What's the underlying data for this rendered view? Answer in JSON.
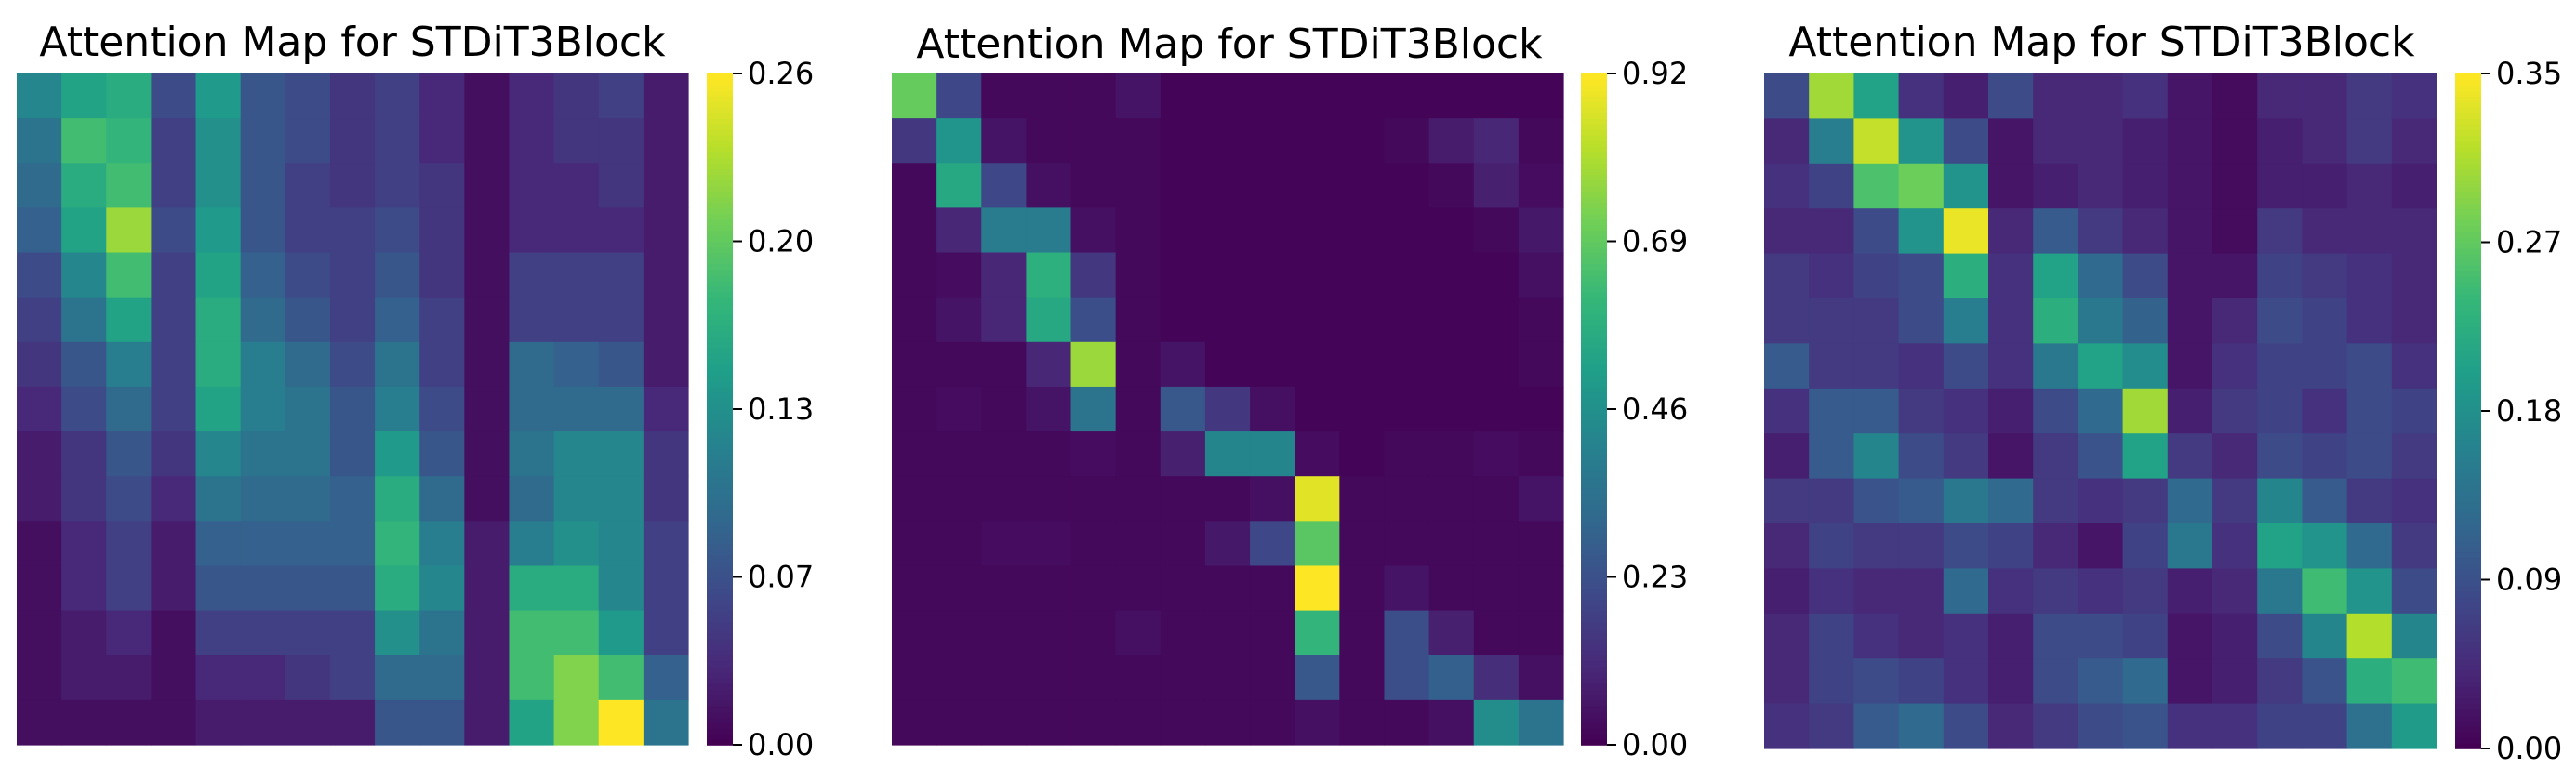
{
  "colormap": "viridis",
  "chart_data": [
    {
      "type": "heatmap",
      "title": "Attention Map for STDiT3Block",
      "colorbar": {
        "vmin": 0,
        "vmax": 0.26,
        "ticks": [
          "0.00",
          "0.07",
          "0.13",
          "0.20",
          "0.26"
        ]
      },
      "values": [
        [
          0.12,
          0.15,
          0.16,
          0.06,
          0.14,
          0.07,
          0.06,
          0.04,
          0.05,
          0.03,
          0.01,
          0.03,
          0.04,
          0.05,
          0.02
        ],
        [
          0.1,
          0.18,
          0.17,
          0.05,
          0.13,
          0.07,
          0.06,
          0.04,
          0.05,
          0.03,
          0.01,
          0.03,
          0.04,
          0.04,
          0.02
        ],
        [
          0.09,
          0.16,
          0.18,
          0.05,
          0.13,
          0.07,
          0.05,
          0.04,
          0.05,
          0.04,
          0.01,
          0.03,
          0.03,
          0.04,
          0.02
        ],
        [
          0.08,
          0.15,
          0.22,
          0.06,
          0.14,
          0.07,
          0.05,
          0.05,
          0.06,
          0.04,
          0.01,
          0.03,
          0.03,
          0.03,
          0.02
        ],
        [
          0.06,
          0.12,
          0.18,
          0.05,
          0.15,
          0.08,
          0.06,
          0.05,
          0.07,
          0.04,
          0.01,
          0.05,
          0.05,
          0.05,
          0.02
        ],
        [
          0.05,
          0.1,
          0.15,
          0.05,
          0.16,
          0.09,
          0.07,
          0.05,
          0.08,
          0.05,
          0.01,
          0.05,
          0.05,
          0.05,
          0.02
        ],
        [
          0.04,
          0.07,
          0.11,
          0.05,
          0.16,
          0.11,
          0.09,
          0.06,
          0.1,
          0.05,
          0.01,
          0.09,
          0.08,
          0.07,
          0.02
        ],
        [
          0.03,
          0.06,
          0.09,
          0.05,
          0.15,
          0.11,
          0.1,
          0.07,
          0.11,
          0.06,
          0.01,
          0.09,
          0.09,
          0.09,
          0.03
        ],
        [
          0.02,
          0.04,
          0.07,
          0.04,
          0.12,
          0.1,
          0.1,
          0.07,
          0.14,
          0.07,
          0.01,
          0.1,
          0.12,
          0.12,
          0.04
        ],
        [
          0.02,
          0.04,
          0.06,
          0.03,
          0.1,
          0.09,
          0.09,
          0.08,
          0.16,
          0.09,
          0.01,
          0.09,
          0.12,
          0.12,
          0.04
        ],
        [
          0.01,
          0.03,
          0.05,
          0.02,
          0.08,
          0.08,
          0.08,
          0.08,
          0.17,
          0.11,
          0.02,
          0.11,
          0.13,
          0.12,
          0.05
        ],
        [
          0.01,
          0.03,
          0.05,
          0.02,
          0.07,
          0.07,
          0.07,
          0.07,
          0.16,
          0.12,
          0.02,
          0.16,
          0.16,
          0.12,
          0.05
        ],
        [
          0.01,
          0.02,
          0.03,
          0.01,
          0.05,
          0.05,
          0.05,
          0.05,
          0.13,
          0.1,
          0.02,
          0.18,
          0.18,
          0.14,
          0.05
        ],
        [
          0.01,
          0.02,
          0.02,
          0.01,
          0.03,
          0.03,
          0.04,
          0.05,
          0.09,
          0.09,
          0.02,
          0.18,
          0.21,
          0.18,
          0.08
        ],
        [
          0.01,
          0.01,
          0.01,
          0.01,
          0.02,
          0.02,
          0.02,
          0.02,
          0.07,
          0.07,
          0.02,
          0.15,
          0.21,
          0.26,
          0.1
        ]
      ]
    },
    {
      "type": "heatmap",
      "title": "Attention Map for STDiT3Block",
      "colorbar": {
        "vmin": 0,
        "vmax": 0.92,
        "ticks": [
          "0.00",
          "0.23",
          "0.46",
          "0.69",
          "0.92"
        ]
      },
      "values": [
        [
          0.7,
          0.2,
          0.02,
          0.02,
          0.02,
          0.05,
          0.01,
          0.01,
          0.01,
          0.01,
          0.01,
          0.01,
          0.01,
          0.01,
          0.01
        ],
        [
          0.15,
          0.48,
          0.05,
          0.02,
          0.02,
          0.02,
          0.01,
          0.01,
          0.01,
          0.01,
          0.01,
          0.02,
          0.07,
          0.1,
          0.02
        ],
        [
          0.02,
          0.55,
          0.2,
          0.04,
          0.02,
          0.02,
          0.01,
          0.01,
          0.01,
          0.01,
          0.01,
          0.01,
          0.02,
          0.08,
          0.03
        ],
        [
          0.02,
          0.1,
          0.38,
          0.38,
          0.04,
          0.02,
          0.01,
          0.01,
          0.01,
          0.01,
          0.01,
          0.01,
          0.01,
          0.02,
          0.06
        ],
        [
          0.02,
          0.03,
          0.1,
          0.58,
          0.15,
          0.02,
          0.01,
          0.01,
          0.01,
          0.01,
          0.01,
          0.01,
          0.01,
          0.01,
          0.04
        ],
        [
          0.02,
          0.05,
          0.1,
          0.55,
          0.22,
          0.02,
          0.01,
          0.01,
          0.01,
          0.01,
          0.01,
          0.01,
          0.01,
          0.01,
          0.02
        ],
        [
          0.02,
          0.02,
          0.02,
          0.1,
          0.78,
          0.02,
          0.05,
          0.01,
          0.01,
          0.01,
          0.01,
          0.01,
          0.01,
          0.01,
          0.02
        ],
        [
          0.02,
          0.03,
          0.02,
          0.05,
          0.35,
          0.02,
          0.25,
          0.15,
          0.04,
          0.01,
          0.01,
          0.01,
          0.01,
          0.01,
          0.01
        ],
        [
          0.02,
          0.02,
          0.02,
          0.02,
          0.03,
          0.02,
          0.08,
          0.42,
          0.42,
          0.03,
          0.01,
          0.02,
          0.02,
          0.03,
          0.02
        ],
        [
          0.02,
          0.02,
          0.02,
          0.02,
          0.02,
          0.02,
          0.02,
          0.02,
          0.04,
          0.88,
          0.02,
          0.02,
          0.02,
          0.02,
          0.05
        ],
        [
          0.02,
          0.02,
          0.03,
          0.03,
          0.02,
          0.02,
          0.02,
          0.06,
          0.2,
          0.68,
          0.02,
          0.02,
          0.02,
          0.02,
          0.02
        ],
        [
          0.02,
          0.02,
          0.02,
          0.02,
          0.02,
          0.02,
          0.02,
          0.02,
          0.02,
          0.92,
          0.02,
          0.05,
          0.02,
          0.02,
          0.02
        ],
        [
          0.02,
          0.02,
          0.02,
          0.02,
          0.02,
          0.04,
          0.02,
          0.02,
          0.02,
          0.6,
          0.02,
          0.22,
          0.08,
          0.02,
          0.02
        ],
        [
          0.02,
          0.02,
          0.02,
          0.02,
          0.02,
          0.02,
          0.02,
          0.02,
          0.02,
          0.25,
          0.02,
          0.22,
          0.28,
          0.12,
          0.04
        ],
        [
          0.02,
          0.02,
          0.02,
          0.02,
          0.02,
          0.02,
          0.02,
          0.02,
          0.02,
          0.04,
          0.02,
          0.02,
          0.04,
          0.45,
          0.35
        ]
      ]
    },
    {
      "type": "heatmap",
      "title": "Attention Map for STDiT3Block",
      "colorbar": {
        "vmin": 0,
        "vmax": 0.35,
        "ticks": [
          "0.00",
          "0.09",
          "0.18",
          "0.27",
          "0.35"
        ]
      },
      "values": [
        [
          0.08,
          0.3,
          0.2,
          0.05,
          0.03,
          0.08,
          0.04,
          0.04,
          0.05,
          0.02,
          0.01,
          0.04,
          0.04,
          0.06,
          0.05
        ],
        [
          0.04,
          0.15,
          0.32,
          0.18,
          0.08,
          0.02,
          0.04,
          0.04,
          0.03,
          0.02,
          0.01,
          0.03,
          0.04,
          0.06,
          0.04
        ],
        [
          0.05,
          0.07,
          0.25,
          0.27,
          0.18,
          0.02,
          0.03,
          0.04,
          0.03,
          0.02,
          0.01,
          0.03,
          0.03,
          0.04,
          0.03
        ],
        [
          0.04,
          0.04,
          0.08,
          0.18,
          0.34,
          0.04,
          0.1,
          0.06,
          0.04,
          0.02,
          0.01,
          0.06,
          0.04,
          0.04,
          0.04
        ],
        [
          0.06,
          0.05,
          0.07,
          0.08,
          0.22,
          0.05,
          0.2,
          0.12,
          0.08,
          0.02,
          0.02,
          0.07,
          0.06,
          0.05,
          0.04
        ],
        [
          0.06,
          0.06,
          0.06,
          0.08,
          0.15,
          0.05,
          0.22,
          0.14,
          0.11,
          0.02,
          0.04,
          0.08,
          0.07,
          0.05,
          0.04
        ],
        [
          0.1,
          0.06,
          0.06,
          0.05,
          0.08,
          0.05,
          0.14,
          0.2,
          0.17,
          0.02,
          0.05,
          0.07,
          0.07,
          0.08,
          0.05
        ],
        [
          0.05,
          0.1,
          0.1,
          0.06,
          0.05,
          0.03,
          0.08,
          0.12,
          0.3,
          0.03,
          0.06,
          0.07,
          0.05,
          0.08,
          0.07
        ],
        [
          0.03,
          0.1,
          0.16,
          0.08,
          0.06,
          0.02,
          0.06,
          0.09,
          0.2,
          0.06,
          0.04,
          0.08,
          0.07,
          0.08,
          0.06
        ],
        [
          0.06,
          0.06,
          0.09,
          0.1,
          0.14,
          0.12,
          0.06,
          0.05,
          0.06,
          0.12,
          0.06,
          0.16,
          0.1,
          0.06,
          0.05
        ],
        [
          0.04,
          0.07,
          0.06,
          0.06,
          0.08,
          0.07,
          0.04,
          0.02,
          0.07,
          0.14,
          0.05,
          0.2,
          0.18,
          0.12,
          0.06
        ],
        [
          0.03,
          0.05,
          0.04,
          0.04,
          0.12,
          0.05,
          0.06,
          0.05,
          0.06,
          0.03,
          0.04,
          0.14,
          0.24,
          0.18,
          0.08
        ],
        [
          0.04,
          0.07,
          0.05,
          0.04,
          0.05,
          0.03,
          0.08,
          0.08,
          0.07,
          0.02,
          0.03,
          0.08,
          0.16,
          0.31,
          0.16
        ],
        [
          0.04,
          0.07,
          0.08,
          0.07,
          0.05,
          0.03,
          0.08,
          0.1,
          0.12,
          0.02,
          0.03,
          0.06,
          0.09,
          0.22,
          0.24
        ],
        [
          0.05,
          0.06,
          0.1,
          0.12,
          0.08,
          0.04,
          0.06,
          0.08,
          0.09,
          0.05,
          0.05,
          0.07,
          0.07,
          0.13,
          0.19
        ]
      ]
    }
  ]
}
